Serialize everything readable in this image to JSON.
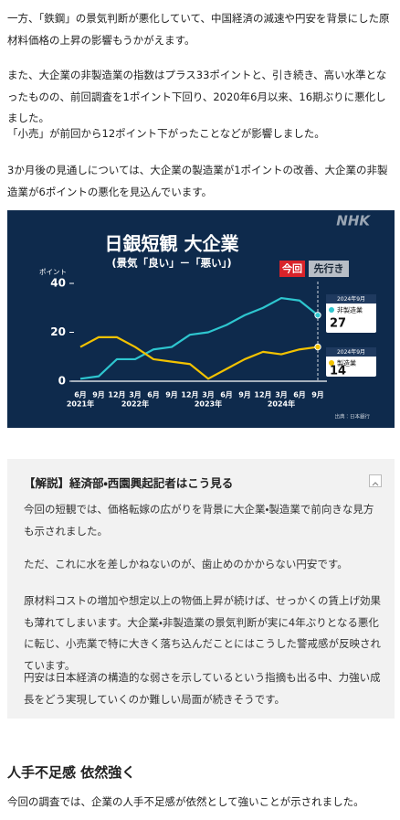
{
  "paragraphs": [
    "一方、「鉄鋼」の景気判断が悪化していて、中国経済の減速や円安を背景にした原材料価格の上昇の影響もうかがえます。",
    "また、大企業の非製造業の指数はプラス33ポイントと、引き続き、高い水準となったものの、前回調査を1ポイント下回り、2020年6月以来、16期ぶりに悪化しました。",
    "「小売」が前回から12ポイント下がったことなどが影響しました。",
    "3か月後の見通しについては、大企業の製造業が1ポイントの改善、大企業の非製造業が6ポイントの悪化を見込んでいます。"
  ],
  "chart_data": {
    "type": "line",
    "title": "日銀短観 大企業",
    "subtitle": "(景気「良い」－「悪い」)",
    "logo": "NHK",
    "y_axis_label": "ポイント",
    "categories": [
      "6月",
      "9月",
      "12月",
      "3月",
      "6月",
      "9月",
      "12月",
      "3月",
      "6月",
      "9月",
      "12月",
      "3月",
      "6月",
      "9月"
    ],
    "years": [
      "2021年",
      null,
      null,
      "2022年",
      null,
      null,
      null,
      "2023年",
      null,
      null,
      null,
      "2024年",
      null,
      null
    ],
    "series": [
      {
        "name": "非製造業",
        "color": "#2ec6cf",
        "values": [
          1,
          2,
          9,
          9,
          13,
          14,
          19,
          20,
          23,
          27,
          30,
          34,
          33,
          27
        ]
      },
      {
        "name": "製造業",
        "color": "#f2c200",
        "values": [
          14,
          18,
          18,
          14,
          9,
          8,
          7,
          1,
          5,
          9,
          12,
          11,
          13,
          14
        ]
      }
    ],
    "ylim": [
      0,
      40
    ],
    "yticks": [
      0,
      20,
      40
    ],
    "current_label": "今回",
    "forecast_label": "先行き",
    "callout_date": "2024年9月",
    "source": "出典：日本銀行"
  },
  "commentary": {
    "heading": "【解説】経済部・西園興起記者はこう見る",
    "paragraphs": [
      "今回の短観では、価格転嫁の広がりを背景に大企業・製造業で前向きな見方も示されました。",
      "ただ、これに水を差しかねないのが、歯止めのかからない円安です。",
      "原材料コストの増加や想定以上の物価上昇が続けば、せっかくの賃上げ効果も薄れてしまいます。大企業・非製造業の景気判断が実に4年ぶりとなる悪化に転じ、小売業で特に大きく落ち込んだことにはこうした警戒感が反映されています。",
      "円安は日本経済の構造的な弱さを示しているという指摘も出る中、力強い成長をどう実現していくのか難しい局面が続きそうです。"
    ]
  },
  "section": {
    "heading": "人手不足感 依然強く",
    "paragraph": "今回の調査では、企業の人手不足感が依然として強いことが示されました。"
  }
}
